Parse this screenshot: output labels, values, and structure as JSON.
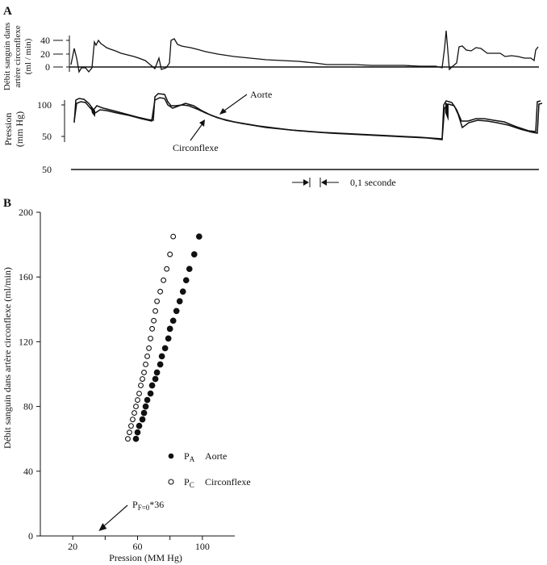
{
  "panel_a": {
    "label": "A",
    "flow_ylabel_line1": "Débit sanguin dans",
    "flow_ylabel_line2": "artère circonflexe",
    "flow_ylabel_line3": "(ml / min)",
    "flow_ticks": [
      "40",
      "20",
      "0"
    ],
    "pressure_ylabel_line1": "Pression",
    "pressure_ylabel_line2": "(mm Hg)",
    "pressure_ticks": [
      "100",
      "50"
    ],
    "baseline_tick": "50",
    "annot_aorte": "Aorte",
    "annot_circonflexe": "Circonflexe",
    "time_scale_label": "0,1 seconde"
  },
  "panel_b": {
    "label": "B",
    "legend_aorte_symbol": "P",
    "legend_aorte_sub": "A",
    "legend_aorte_name": "Aorte",
    "legend_circ_symbol": "P",
    "legend_circ_sub": "C",
    "legend_circ_name": "Circonflexe",
    "pf_symbol": "P",
    "pf_sub": "F=0",
    "pf_value": "*36"
  },
  "chart_data": [
    {
      "type": "line",
      "panel": "A",
      "series": [
        {
          "name": "Aorte"
        },
        {
          "name": "Circonflexe"
        }
      ],
      "flow_ylim": [
        0,
        40
      ],
      "pressure_ylim": [
        50,
        100
      ]
    },
    {
      "type": "scatter",
      "panel": "B",
      "xlabel": "Pression (MM Hg)",
      "ylabel": "Débit sanguin dans artère circonflexe (ml/min)",
      "xlim": [
        0,
        120
      ],
      "ylim": [
        0,
        200
      ],
      "xticks": [
        20,
        40,
        60,
        80,
        100
      ],
      "xtick_labels": [
        "20",
        "",
        "60",
        "",
        "100"
      ],
      "yticks": [
        0,
        40,
        80,
        120,
        160,
        200
      ],
      "ytick_labels": [
        "0",
        "40",
        "80",
        "120",
        "160",
        "200"
      ],
      "series": [
        {
          "name": "Aorte",
          "marker": "filled",
          "points": [
            [
              59,
              60
            ],
            [
              60,
              64
            ],
            [
              61,
              68
            ],
            [
              63,
              72
            ],
            [
              64,
              76
            ],
            [
              65,
              80
            ],
            [
              66,
              84
            ],
            [
              68,
              88
            ],
            [
              69,
              93
            ],
            [
              71,
              97
            ],
            [
              72,
              101
            ],
            [
              74,
              106
            ],
            [
              75,
              111
            ],
            [
              77,
              116
            ],
            [
              79,
              122
            ],
            [
              80,
              128
            ],
            [
              82,
              133
            ],
            [
              84,
              139
            ],
            [
              86,
              145
            ],
            [
              88,
              151
            ],
            [
              90,
              158
            ],
            [
              92,
              165
            ],
            [
              95,
              174
            ],
            [
              98,
              185
            ]
          ]
        },
        {
          "name": "Circonflexe",
          "marker": "open",
          "points": [
            [
              54,
              60
            ],
            [
              55,
              64
            ],
            [
              56,
              68
            ],
            [
              57,
              72
            ],
            [
              58,
              76
            ],
            [
              59,
              80
            ],
            [
              60,
              84
            ],
            [
              61,
              88
            ],
            [
              62,
              93
            ],
            [
              63,
              97
            ],
            [
              64,
              101
            ],
            [
              65,
              106
            ],
            [
              66,
              111
            ],
            [
              67,
              116
            ],
            [
              68,
              122
            ],
            [
              69,
              128
            ],
            [
              70,
              133
            ],
            [
              71,
              139
            ],
            [
              72,
              145
            ],
            [
              74,
              151
            ],
            [
              76,
              158
            ],
            [
              78,
              165
            ],
            [
              80,
              174
            ],
            [
              82,
              185
            ]
          ]
        }
      ],
      "annotation_x": 36
    }
  ]
}
